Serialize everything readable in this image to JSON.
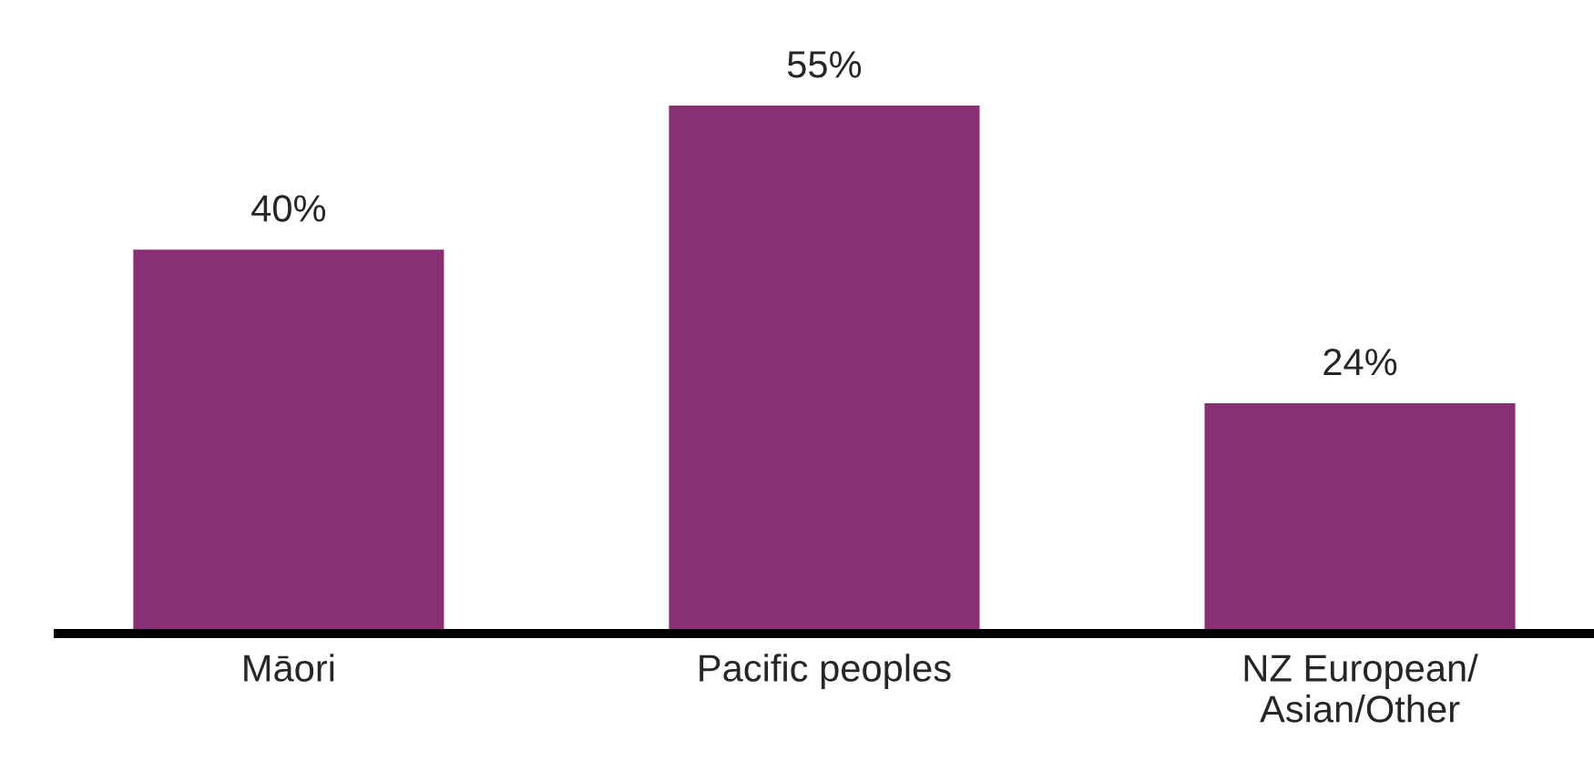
{
  "chart_data": {
    "type": "bar",
    "categories": [
      "Māori",
      "Pacific peoples",
      "NZ European/\nAsian/Other"
    ],
    "values": [
      40,
      55,
      24
    ],
    "value_labels": [
      "40%",
      "55%",
      "24%"
    ],
    "color": "#883073",
    "tick_labels": "x",
    "grid": false,
    "legend": false
  }
}
